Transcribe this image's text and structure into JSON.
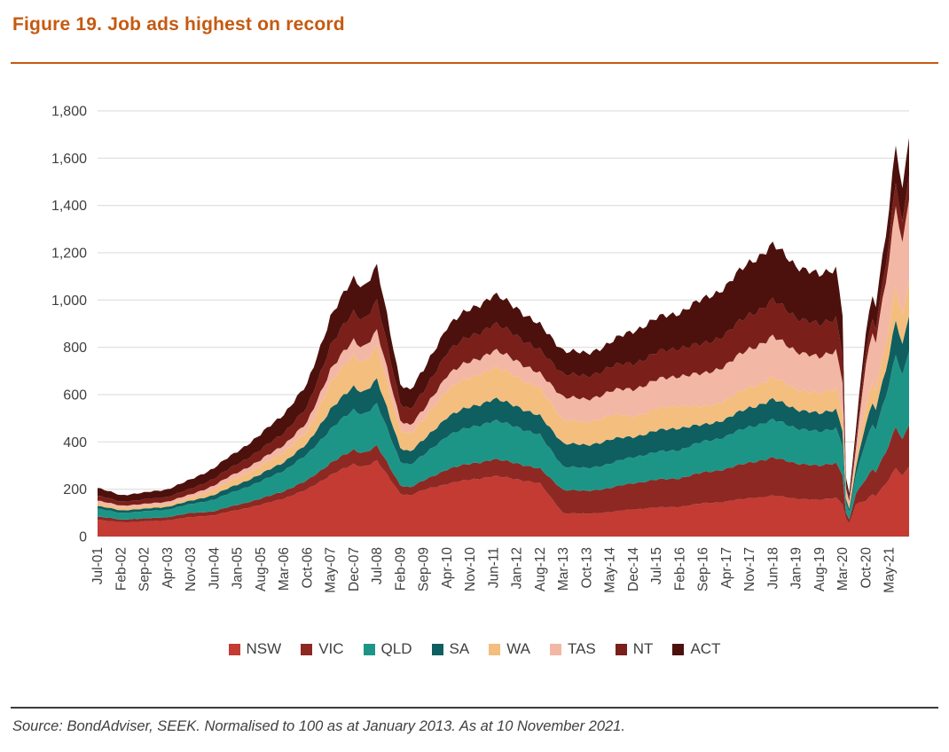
{
  "figure": {
    "title": "Figure 19. Job ads highest on record",
    "source": "Source: BondAdviser, SEEK. Normalised to 100 as at January 2013. As at 10 November 2021.",
    "accent_color": "#C55A11"
  },
  "chart_data": {
    "type": "area",
    "stacked": true,
    "title": "Figure 19. Job ads highest on record",
    "xlabel": "",
    "ylabel": "",
    "x_unit": "months since Jul-2001",
    "x_range": [
      0,
      244
    ],
    "ylim": [
      0,
      1800
    ],
    "grid": true,
    "gridline_color": "#d9d9d9",
    "legend_position": "bottom",
    "y_ticks": [
      0,
      200,
      400,
      600,
      800,
      1000,
      1200,
      1400,
      1600,
      1800
    ],
    "y_tick_labels": [
      "0",
      "200",
      "400",
      "600",
      "800",
      "1,000",
      "1,200",
      "1,400",
      "1,600",
      "1,800"
    ],
    "x_tick_positions": [
      0,
      7,
      14,
      21,
      28,
      35,
      42,
      49,
      56,
      63,
      70,
      77,
      84,
      91,
      98,
      105,
      112,
      119,
      126,
      133,
      140,
      147,
      154,
      161,
      168,
      175,
      182,
      189,
      196,
      203,
      210,
      217,
      224,
      231,
      238
    ],
    "x_tick_labels": [
      "Jul-01",
      "Feb-02",
      "Sep-02",
      "Apr-03",
      "Nov-03",
      "Jun-04",
      "Jan-05",
      "Aug-05",
      "Mar-06",
      "Oct-06",
      "May-07",
      "Dec-07",
      "Jul-08",
      "Feb-09",
      "Sep-09",
      "Apr-10",
      "Nov-10",
      "Jun-11",
      "Jan-12",
      "Aug-12",
      "Mar-13",
      "Oct-13",
      "May-14",
      "Dec-14",
      "Jul-15",
      "Feb-16",
      "Sep-16",
      "Apr-17",
      "Nov-17",
      "Jun-18",
      "Jan-19",
      "Aug-19",
      "Mar-20",
      "Oct-20",
      "May-21"
    ],
    "x": [
      0,
      7,
      14,
      21,
      28,
      35,
      42,
      49,
      56,
      63,
      70,
      77,
      80,
      84,
      91,
      94,
      98,
      105,
      112,
      119,
      126,
      133,
      140,
      147,
      154,
      161,
      168,
      175,
      182,
      189,
      196,
      203,
      210,
      217,
      222,
      224,
      225,
      226,
      228,
      231,
      233,
      234,
      238,
      240,
      242,
      244
    ],
    "series": [
      {
        "name": "NSW",
        "color": "#C33B32",
        "values": [
          70,
          60,
          63,
          68,
          82,
          90,
          112,
          133,
          161,
          198,
          260,
          305,
          297,
          319,
          182,
          174,
          196,
          223,
          240,
          255,
          243,
          223,
          99,
          96,
          103,
          115,
          122,
          126,
          140,
          148,
          162,
          172,
          161,
          154,
          165,
          138,
          75,
          54,
          135,
          152,
          179,
          173,
          242,
          289,
          254,
          300
        ]
      },
      {
        "name": "VIC",
        "color": "#8E2823",
        "values": [
          14,
          12,
          13,
          14,
          17,
          17,
          22,
          26,
          31,
          38,
          51,
          60,
          58,
          63,
          36,
          34,
          39,
          62,
          67,
          71,
          68,
          62,
          99,
          96,
          102,
          111,
          117,
          121,
          130,
          138,
          151,
          160,
          150,
          143,
          148,
          124,
          25,
          18,
          45,
          91,
          107,
          104,
          145,
          173,
          152,
          180
        ]
      },
      {
        "name": "QLD",
        "color": "#1D9586",
        "values": [
          33,
          28,
          30,
          32,
          38,
          49,
          61,
          73,
          88,
          109,
          144,
          169,
          164,
          177,
          101,
          96,
          108,
          142,
          154,
          163,
          155,
          142,
          99,
          96,
          103,
          111,
          117,
          121,
          130,
          138,
          151,
          160,
          150,
          143,
          148,
          124,
          43,
          31,
          76,
          161,
          189,
          183,
          255,
          305,
          268,
          317
        ]
      },
      {
        "name": "SA",
        "color": "#0F5E60",
        "values": [
          12,
          11,
          11,
          12,
          14,
          20,
          25,
          30,
          36,
          45,
          84,
          98,
          95,
          103,
          59,
          56,
          63,
          80,
          86,
          92,
          87,
          80,
          99,
          96,
          102,
          85,
          90,
          93,
          70,
          74,
          81,
          86,
          80,
          77,
          80,
          66,
          17,
          13,
          32,
          77,
          90,
          87,
          121,
          145,
          128,
          151
        ]
      },
      {
        "name": "WA",
        "color": "#F4BE7E",
        "values": [
          10,
          9,
          9,
          10,
          12,
          23,
          29,
          34,
          42,
          51,
          112,
          131,
          127,
          137,
          78,
          74,
          84,
          116,
          125,
          133,
          126,
          116,
          99,
          96,
          103,
          87,
          92,
          95,
          75,
          80,
          87,
          92,
          86,
          82,
          91,
          76,
          20,
          14,
          36,
          76,
          89,
          86,
          120,
          144,
          126,
          149
        ]
      },
      {
        "name": "TAS",
        "color": "#F3B7A6",
        "values": [
          12,
          11,
          11,
          12,
          14,
          17,
          22,
          26,
          31,
          38,
          56,
          65,
          64,
          68,
          39,
          37,
          42,
          62,
          67,
          71,
          68,
          62,
          99,
          96,
          102,
          115,
          122,
          126,
          140,
          148,
          162,
          172,
          161,
          154,
          160,
          133,
          25,
          18,
          45,
          178,
          209,
          203,
          283,
          338,
          297,
          352
        ]
      },
      {
        "name": "NT",
        "color": "#7A1F1A",
        "values": [
          21,
          17,
          19,
          20,
          24,
          29,
          36,
          43,
          52,
          64,
          102,
          120,
          117,
          125,
          72,
          68,
          77,
          98,
          106,
          112,
          107,
          98,
          98,
          97,
          103,
          109,
          115,
          119,
          125,
          133,
          145,
          154,
          144,
          138,
          137,
          114,
          20,
          14,
          36,
          51,
          60,
          58,
          81,
          97,
          86,
          101
        ]
      },
      {
        "name": "ACT",
        "color": "#4C110D",
        "values": [
          33,
          27,
          29,
          32,
          39,
          45,
          53,
          65,
          79,
          97,
          121,
          142,
          138,
          148,
          83,
          81,
          91,
          107,
          115,
          123,
          116,
          107,
          98,
          97,
          102,
          137,
          145,
          149,
          190,
          201,
          221,
          234,
          218,
          209,
          211,
          175,
          25,
          18,
          45,
          84,
          97,
          96,
          133,
          159,
          139,
          165
        ]
      }
    ]
  }
}
